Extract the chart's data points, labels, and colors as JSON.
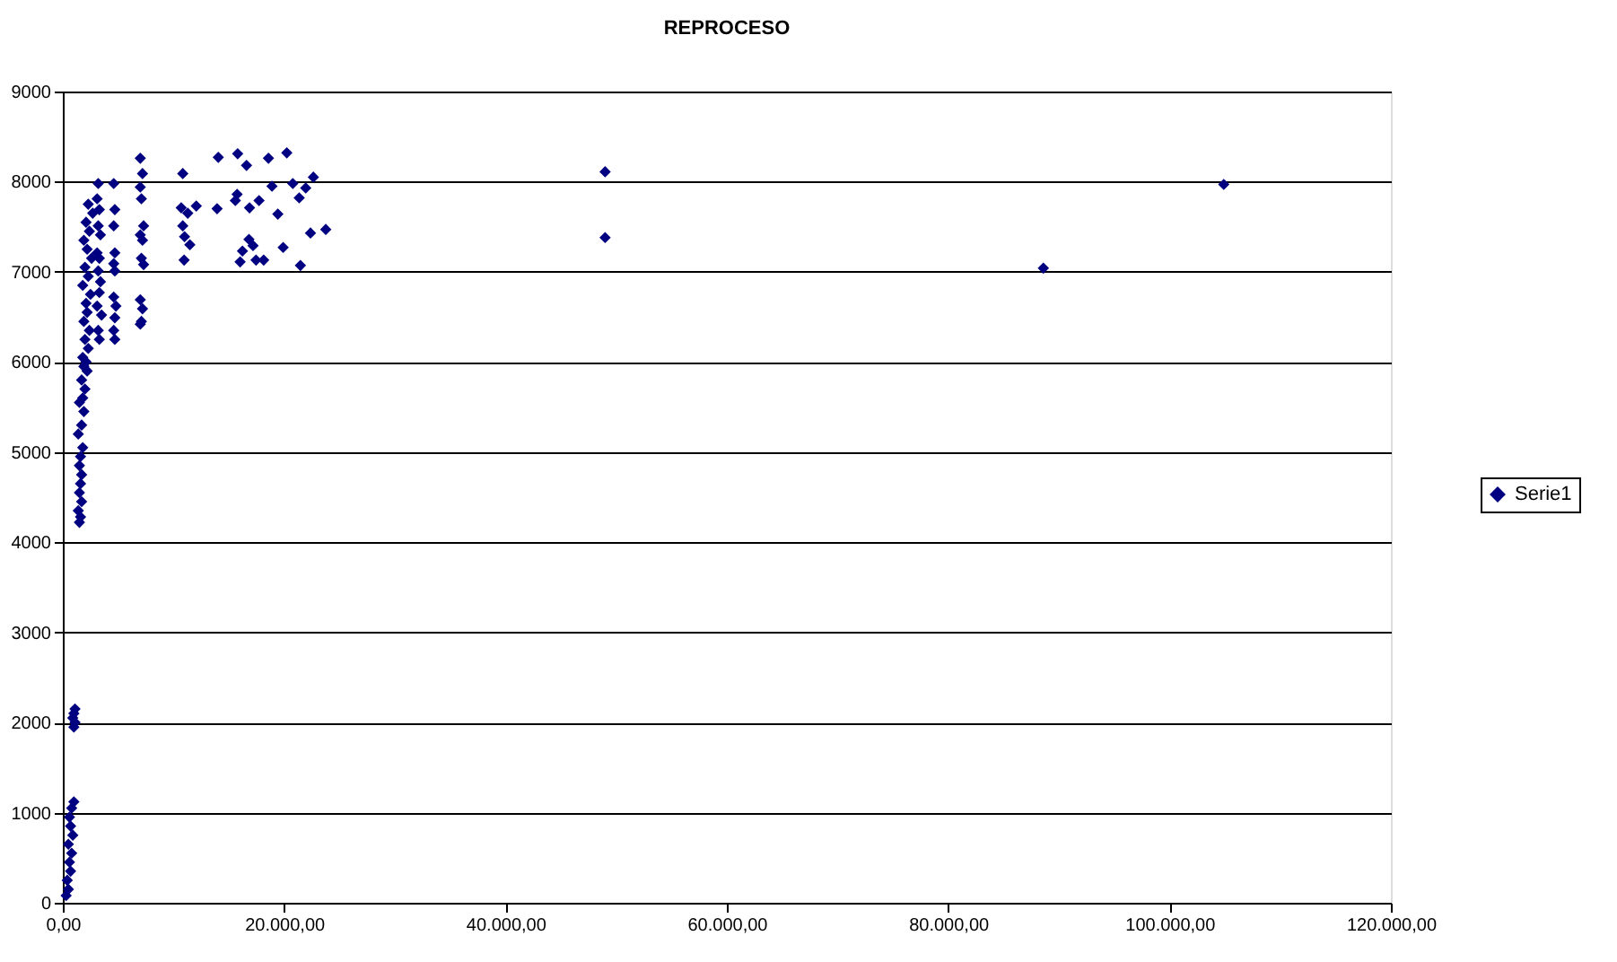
{
  "chart_data": {
    "type": "scatter",
    "title": "REPROCESO",
    "x": [
      300,
      500,
      400,
      700,
      600,
      800,
      500,
      900,
      700,
      600,
      800,
      1000,
      1000,
      1100,
      900,
      1000,
      1100,
      1500,
      1600,
      1400,
      1700,
      1500,
      1600,
      1700,
      1500,
      1600,
      1800,
      1400,
      1700,
      1900,
      1500,
      1800,
      2000,
      1700,
      2200,
      1900,
      2100,
      1800,
      2300,
      2000,
      2400,
      1900,
      2200,
      2100,
      2500,
      1800,
      2300,
      2000,
      2600,
      2200,
      1900,
      2400,
      2100,
      2700,
      2300,
      3200,
      3100,
      3300,
      3200,
      3400,
      3100,
      3300,
      3200,
      3400,
      3300,
      3100,
      3500,
      3200,
      3300,
      4600,
      4700,
      4600,
      4700,
      4600,
      4700,
      4600,
      4800,
      4700,
      4600,
      4700,
      7000,
      7200,
      7000,
      7100,
      7300,
      7000,
      7200,
      7100,
      7300,
      7000,
      7200,
      7100,
      7000,
      10700,
      12060,
      11290,
      10840,
      11000,
      11480,
      10960,
      10840,
      14050,
      15800,
      16600,
      18580,
      20240,
      22640,
      20780,
      21950,
      21360,
      18900,
      15750,
      15590,
      17730,
      16870,
      13940,
      19430,
      22380,
      23760,
      16820,
      17190,
      16230,
      19910,
      16020,
      17460,
      18150,
      21470,
      49000,
      49000,
      88600,
      104900
    ],
    "series": [
      {
        "name": "Serie1",
        "color": "#000080",
        "values": [
          80,
          150,
          250,
          350,
          450,
          550,
          650,
          750,
          850,
          950,
          1050,
          1120,
          1950,
          2000,
          2050,
          2100,
          2150,
          4220,
          4280,
          4350,
          4450,
          4550,
          4650,
          4750,
          4850,
          4950,
          5050,
          5200,
          5300,
          5450,
          5550,
          5600,
          5700,
          5800,
          5900,
          5950,
          6000,
          6050,
          6150,
          6250,
          6350,
          6450,
          6550,
          6650,
          6750,
          6850,
          6950,
          7050,
          7150,
          7250,
          7350,
          7450,
          7550,
          7650,
          7750,
          7980,
          7810,
          7690,
          7510,
          7410,
          7210,
          7150,
          7010,
          6890,
          6770,
          6620,
          6520,
          6350,
          6250,
          7980,
          7690,
          7510,
          7210,
          7090,
          7010,
          6720,
          6620,
          6490,
          6350,
          6250,
          8260,
          8090,
          7940,
          7810,
          7510,
          7410,
          7350,
          7150,
          7080,
          6690,
          6590,
          6450,
          6420,
          7710,
          7730,
          7650,
          7510,
          7390,
          7300,
          7130,
          8090,
          8270,
          8310,
          8180,
          8260,
          8320,
          8050,
          7980,
          7930,
          7820,
          7950,
          7860,
          7790,
          7790,
          7710,
          7700,
          7640,
          7430,
          7470,
          7360,
          7290,
          7230,
          7270,
          7110,
          7130,
          7130,
          7070,
          8110,
          7380,
          7040,
          7970
        ]
      }
    ],
    "marker": "diamond",
    "xlim": [
      0,
      120000
    ],
    "xticks": [
      {
        "value": 0,
        "label": "0,00"
      },
      {
        "value": 20000,
        "label": "20.000,00"
      },
      {
        "value": 40000,
        "label": "40.000,00"
      },
      {
        "value": 60000,
        "label": "60.000,00"
      },
      {
        "value": 80000,
        "label": "80.000,00"
      },
      {
        "value": 100000,
        "label": "100.000,00"
      },
      {
        "value": 120000,
        "label": "120.000,00"
      }
    ],
    "ylim": [
      0,
      9000
    ],
    "yticks": [
      0,
      1000,
      2000,
      3000,
      4000,
      5000,
      6000,
      7000,
      8000,
      9000
    ],
    "grid": "y",
    "legend": "right"
  }
}
